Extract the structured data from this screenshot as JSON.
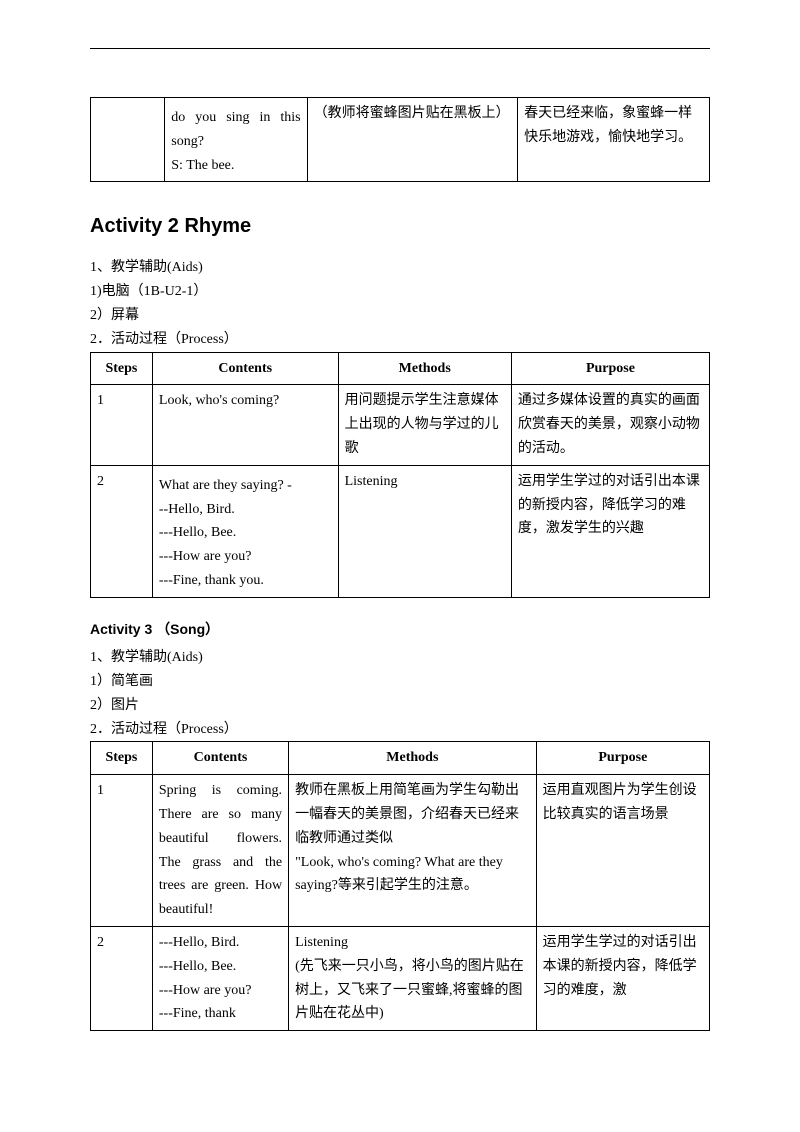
{
  "top_table": {
    "cols_pct": [
      12,
      23,
      34,
      31
    ],
    "rows": [
      {
        "c1": "",
        "c2": "do you sing in this song?\nS: The bee.",
        "c3": "（教师将蜜蜂图片贴在黑板上）",
        "c4": "春天已经来临，象蜜蜂一样快乐地游戏，愉快地学习。"
      }
    ]
  },
  "activity2": {
    "title": "Activity 2 Rhyme",
    "aids_title": "1、教学辅助(Aids)",
    "aids": [
      "1)电脑（1B-U2-1）",
      "2）屏幕"
    ],
    "process_title": "2．活动过程（Process）",
    "table": {
      "cols_pct": [
        10,
        30,
        28,
        32
      ],
      "headers": [
        "Steps",
        "Contents",
        "Methods",
        "Purpose"
      ],
      "rows": [
        {
          "step": "1",
          "contents": "Look, who's coming?",
          "methods": "用问题提示学生注意媒体上出现的人物与学过的儿歌",
          "purpose": "通过多媒体设置的真实的画面欣赏春天的美景，观察小动物的活动。"
        },
        {
          "step": "2",
          "contents": "What are they saying? -\n--Hello, Bird.\n---Hello, Bee.\n---How are you?\n---Fine, thank you.",
          "methods": "Listening",
          "purpose": "运用学生学过的对话引出本课的新授内容，降低学习的难度，激发学生的兴趣"
        }
      ]
    }
  },
  "activity3": {
    "title": "Activity 3 （Song）",
    "aids_title": "1、教学辅助(Aids)",
    "aids": [
      "1）简笔画",
      "2）图片"
    ],
    "process_title": "2．活动过程（Process）",
    "table": {
      "cols_pct": [
        10,
        22,
        40,
        28
      ],
      "headers": [
        "Steps",
        "Contents",
        "Methods",
        "Purpose"
      ],
      "rows": [
        {
          "step": "1",
          "contents": "Spring is coming. There are so many beautiful flowers. The grass and the trees are green. How beautiful!",
          "methods": "教师在黑板上用简笔画为学生勾勒出一幅春天的美景图，介绍春天已经来临教师通过类似\n\"Look, who's coming? What are they saying?等来引起学生的注意。",
          "purpose": "运用直观图片为学生创设比较真实的语言场景"
        },
        {
          "step": "2",
          "contents": "---Hello, Bird.\n---Hello, Bee.\n---How are you?\n---Fine, thank",
          "methods": "Listening\n(先飞来一只小鸟，将小鸟的图片贴在树上，又飞来了一只蜜蜂,将蜜蜂的图片贴在花丛中)",
          "purpose": "运用学生学过的对话引出本课的新授内容，降低学习的难度，激"
        }
      ]
    }
  }
}
